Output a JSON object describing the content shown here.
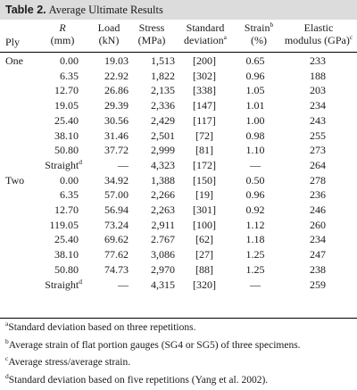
{
  "title": {
    "number": "Table 2.",
    "text": "Average Ultimate Results"
  },
  "header": {
    "ply": "Ply",
    "r": "R",
    "r_unit": "(mm)",
    "load": "Load",
    "load_unit": "(kN)",
    "stress": "Stress",
    "stress_unit": "(MPa)",
    "sd": "Standard",
    "sd2": "deviation",
    "sd_sup": "a",
    "strain": "Strain",
    "strain_sup": "b",
    "strain_unit": "(%)",
    "em": "Elastic",
    "em2": "modulus (GPa)",
    "em_sup": "c"
  },
  "rows": [
    {
      "ply": "One",
      "r": "0.00",
      "r_sup": "",
      "load": "19.03",
      "stress": "1,513",
      "sd": "[200]",
      "strain": "0.65",
      "em": "233"
    },
    {
      "ply": "",
      "r": "6.35",
      "r_sup": "",
      "load": "22.92",
      "stress": "1,822",
      "sd": "[302]",
      "strain": "0.96",
      "em": "188"
    },
    {
      "ply": "",
      "r": "12.70",
      "r_sup": "",
      "load": "26.86",
      "stress": "2,135",
      "sd": "[338]",
      "strain": "1.05",
      "em": "203"
    },
    {
      "ply": "",
      "r": "19.05",
      "r_sup": "",
      "load": "29.39",
      "stress": "2,336",
      "sd": "[147]",
      "strain": "1.01",
      "em": "234"
    },
    {
      "ply": "",
      "r": "25.40",
      "r_sup": "",
      "load": "30.56",
      "stress": "2,429",
      "sd": "[117]",
      "strain": "1.00",
      "em": "243"
    },
    {
      "ply": "",
      "r": "38.10",
      "r_sup": "",
      "load": "31.46",
      "stress": "2,501",
      "sd": "[72]",
      "strain": "0.98",
      "em": "255"
    },
    {
      "ply": "",
      "r": "50.80",
      "r_sup": "",
      "load": "37.72",
      "stress": "2,999",
      "sd": "[81]",
      "strain": "1.10",
      "em": "273"
    },
    {
      "ply": "",
      "r": "Straight",
      "r_sup": "d",
      "load": "—",
      "stress": "4,323",
      "sd": "[172]",
      "strain": "—",
      "em": "264"
    },
    {
      "ply": "Two",
      "r": "0.00",
      "r_sup": "",
      "load": "34.92",
      "stress": "1,388",
      "sd": "[150]",
      "strain": "0.50",
      "em": "278"
    },
    {
      "ply": "",
      "r": "6.35",
      "r_sup": "",
      "load": "57.00",
      "stress": "2,266",
      "sd": "[19]",
      "strain": "0.96",
      "em": "236"
    },
    {
      "ply": "",
      "r": "12.70",
      "r_sup": "",
      "load": "56.94",
      "stress": "2,263",
      "sd": "[301]",
      "strain": "0.92",
      "em": "246"
    },
    {
      "ply": "",
      "r": "119.05",
      "r_sup": "",
      "load": "73.24",
      "stress": "2,911",
      "sd": "[100]",
      "strain": "1.12",
      "em": "260"
    },
    {
      "ply": "",
      "r": "25.40",
      "r_sup": "",
      "load": "69.62",
      "stress": "2.767",
      "sd": "[62]",
      "strain": "1.18",
      "em": "234"
    },
    {
      "ply": "",
      "r": "38.10",
      "r_sup": "",
      "load": "77.62",
      "stress": "3,086",
      "sd": "[27]",
      "strain": "1.25",
      "em": "247"
    },
    {
      "ply": "",
      "r": "50.80",
      "r_sup": "",
      "load": "74.73",
      "stress": "2,970",
      "sd": "[88]",
      "strain": "1.25",
      "em": "238"
    },
    {
      "ply": "",
      "r": "Straight",
      "r_sup": "d",
      "load": "—",
      "stress": "4,315",
      "sd": "[320]",
      "strain": "—",
      "em": "259"
    }
  ],
  "footnotes": [
    {
      "mark": "a",
      "text": "Standard deviation based on three repetitions."
    },
    {
      "mark": "b",
      "text": "Average strain of flat portion gauges (SG4 or SG5) of three specimens."
    },
    {
      "mark": "c",
      "text": "Average stress/average strain."
    },
    {
      "mark": "d",
      "text": "Standard deviation based on five repetitions (Yang et al. 2002)."
    }
  ]
}
